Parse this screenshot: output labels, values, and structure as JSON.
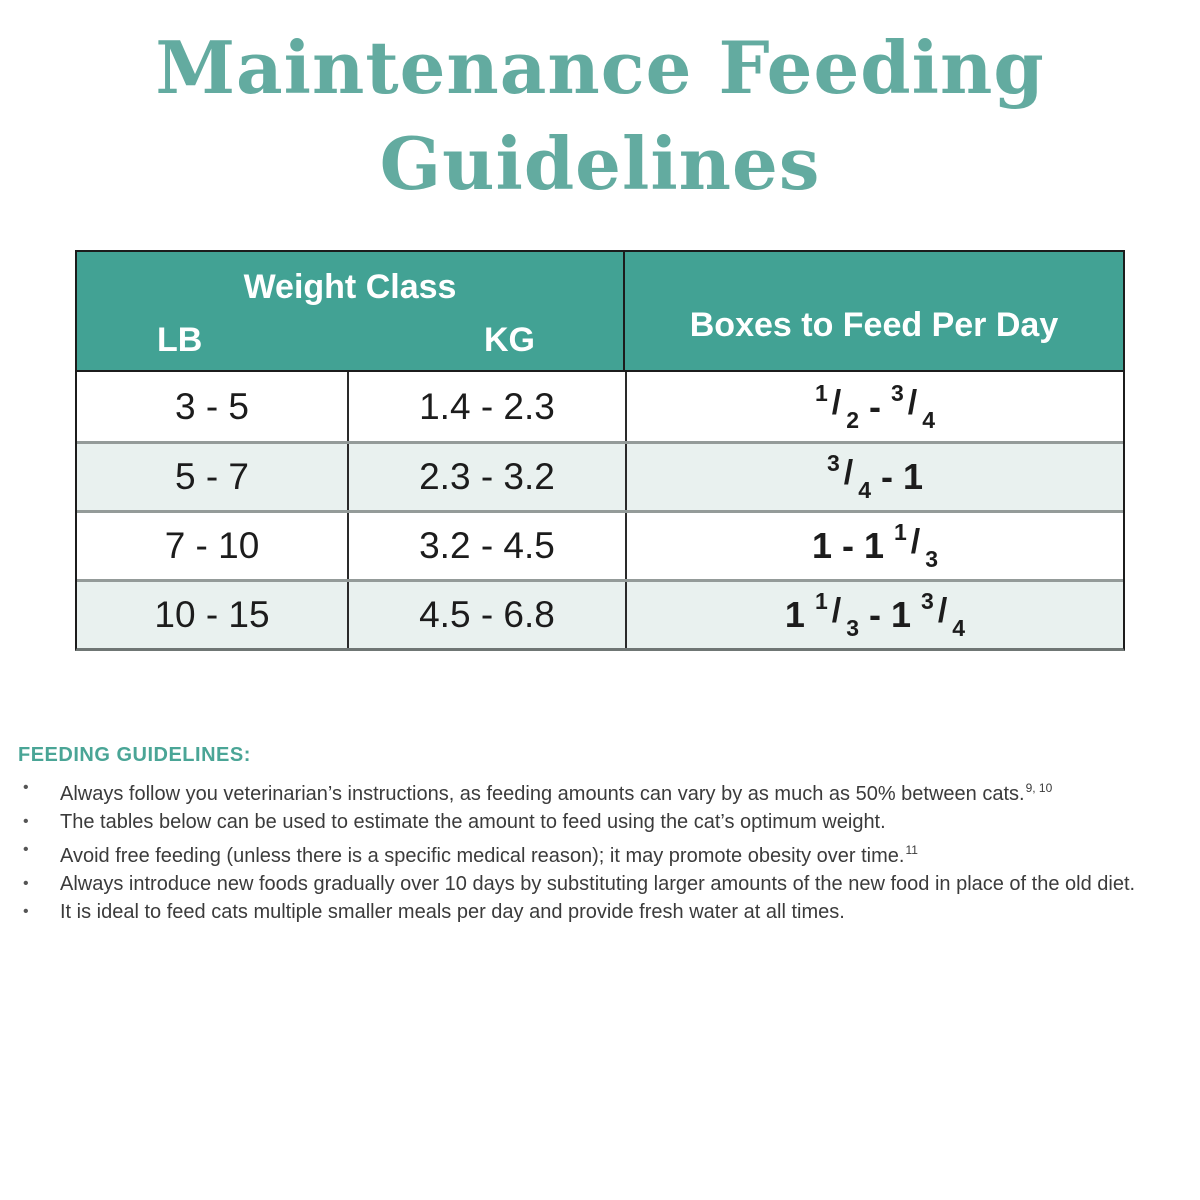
{
  "title": {
    "line1": "Maintenance Feeding",
    "line2": "Guidelines"
  },
  "colors": {
    "title_text": "#63aba0",
    "table_header_bg": "#42a294",
    "table_header_text": "#ffffff",
    "alt_row_bg": "#e9f1ef",
    "guidelines_heading": "#4aa596",
    "body_text": "#3b3b3b"
  },
  "table": {
    "header": {
      "weight_class": "Weight Class",
      "lb": "LB",
      "kg": "KG",
      "boxes": "Boxes to Feed Per Day"
    },
    "rows": [
      {
        "lb": "3 - 5",
        "kg": "1.4 - 2.3",
        "boxes": "1/2 - 3/4"
      },
      {
        "lb": "5 - 7",
        "kg": "2.3 - 3.2",
        "boxes": "3/4 - 1"
      },
      {
        "lb": "7 - 10",
        "kg": "3.2 - 4.5",
        "boxes": "1 - 1 1/3"
      },
      {
        "lb": "10 - 15",
        "kg": "4.5 - 6.8",
        "boxes": "1 1/3 - 1 3/4"
      }
    ]
  },
  "guidelines": {
    "heading": "FEEDING GUIDELINES:",
    "bullets": [
      {
        "text": "Always follow you veterinarian’s instructions, as feeding amounts can vary by as much as 50% between cats.",
        "ref": "9, 10"
      },
      {
        "text": "The tables below can be used to estimate the amount to feed using the cat’s optimum weight.",
        "ref": ""
      },
      {
        "text": "Avoid free feeding (unless there is a specific medical reason); it may promote obesity over time.",
        "ref": "11"
      },
      {
        "text": "Always introduce new foods gradually over 10 days by substituting larger amounts of the new food in place of the old diet.",
        "ref": ""
      },
      {
        "text": "It is ideal to feed cats multiple smaller meals per day and provide fresh water at all times.",
        "ref": ""
      }
    ]
  }
}
